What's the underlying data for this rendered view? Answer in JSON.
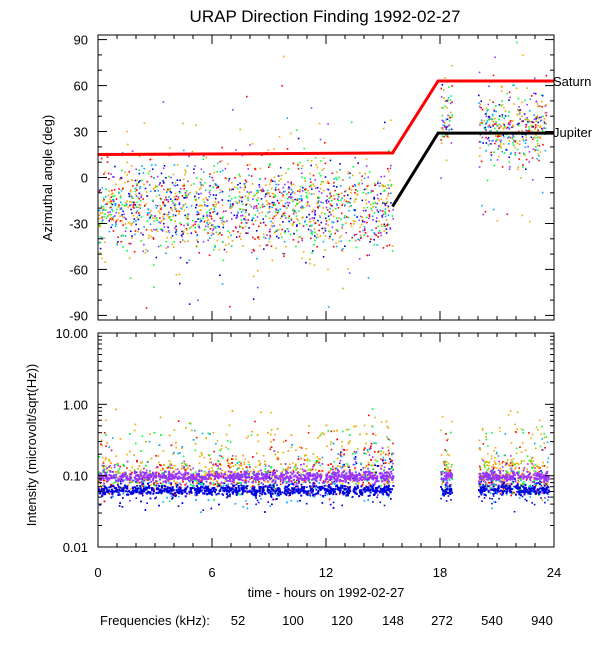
{
  "chart_data": [
    {
      "type": "scatter",
      "panel": "top",
      "title": "URAP Direction Finding  1992-02-27",
      "ylabel": "Azimuthal angle (deg)",
      "xlim": [
        0,
        24
      ],
      "ylim": [
        -93,
        93
      ],
      "yticks": [
        "90",
        "60",
        "30",
        "0",
        "-30",
        "-60",
        "-90"
      ],
      "ytick_values": [
        90,
        60,
        30,
        0,
        -30,
        -60,
        -90
      ],
      "series": [
        {
          "name": "Saturn",
          "type": "line",
          "color": "#ff0000",
          "x": [
            0,
            15.5,
            17.9,
            24
          ],
          "y": [
            15,
            16,
            63,
            63
          ]
        },
        {
          "name": "Jupiter",
          "type": "line",
          "color": "#000000",
          "x": [
            15.5,
            17.9,
            24
          ],
          "y": [
            -19,
            29,
            29
          ]
        }
      ],
      "scatter_clusters": [
        {
          "x_range": [
            0,
            15.5
          ],
          "center_deg": -19,
          "spread_deg": 14
        },
        {
          "x_range": [
            18.0,
            18.6
          ],
          "center_deg": 38,
          "spread_deg": 10
        },
        {
          "x_range": [
            20.0,
            23.6
          ],
          "center_deg": 33,
          "spread_deg": 12
        }
      ],
      "labels": {
        "saturn": "Saturn",
        "jupiter": "Jupiter"
      }
    },
    {
      "type": "scatter",
      "panel": "bottom",
      "ylabel": "Intensity (microvolt/sqrt(Hz))",
      "xlabel": "time - hours on 1992-02-27",
      "xlim": [
        0,
        24
      ],
      "xticks": [
        "0",
        "6",
        "12",
        "18",
        "24"
      ],
      "xtick_values": [
        0,
        6,
        12,
        18,
        24
      ],
      "yscale": "log",
      "ylim": [
        0.01,
        10
      ],
      "yticks": [
        "10.00",
        "1.00",
        "0.10",
        "0.01"
      ],
      "ytick_values": [
        10,
        1,
        0.1,
        0.01
      ],
      "data_gaps_hours": [
        [
          15.5,
          18.0
        ],
        [
          18.6,
          20.0
        ]
      ],
      "median_levels": [
        {
          "frequency": "940",
          "level": 0.1
        },
        {
          "frequency": "540",
          "level": 0.065
        }
      ]
    }
  ],
  "legend": {
    "label": "Frequencies (kHz):",
    "items": [
      {
        "value": "52",
        "color": "#ff0000"
      },
      {
        "value": "100",
        "color": "#ffa500"
      },
      {
        "value": "120",
        "color": "#e0b000"
      },
      {
        "value": "148",
        "color": "#00ff33"
      },
      {
        "value": "272",
        "color": "#00aaff"
      },
      {
        "value": "540",
        "color": "#0000dd"
      },
      {
        "value": "940",
        "color": "#9933ff"
      }
    ]
  }
}
